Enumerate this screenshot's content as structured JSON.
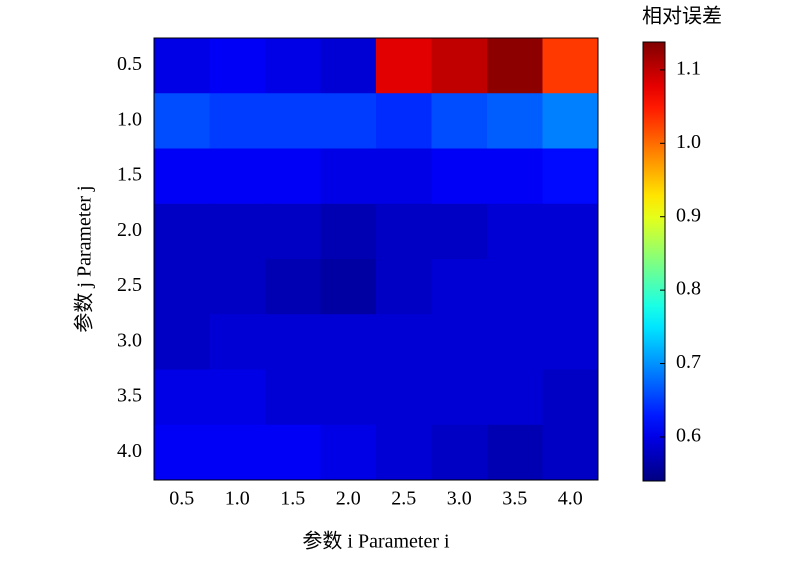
{
  "chart_data": {
    "type": "heatmap",
    "x_label": "参数 i Parameter i",
    "y_label": "参数 j Parameter j",
    "colorbar_label": "相对误差",
    "colormap": "jet",
    "x_categories": [
      "0.5",
      "1.0",
      "1.5",
      "2.0",
      "2.5",
      "3.0",
      "3.5",
      "4.0"
    ],
    "y_categories": [
      "0.5",
      "1.0",
      "1.5",
      "2.0",
      "2.5",
      "3.0",
      "3.5",
      "4.0"
    ],
    "values": [
      [
        0.6,
        0.61,
        0.6,
        0.59,
        1.08,
        1.1,
        1.13,
        1.03
      ],
      [
        0.66,
        0.65,
        0.65,
        0.65,
        0.64,
        0.66,
        0.67,
        0.69
      ],
      [
        0.61,
        0.61,
        0.61,
        0.6,
        0.6,
        0.61,
        0.61,
        0.62
      ],
      [
        0.58,
        0.58,
        0.58,
        0.57,
        0.58,
        0.58,
        0.59,
        0.59
      ],
      [
        0.58,
        0.58,
        0.57,
        0.56,
        0.58,
        0.59,
        0.59,
        0.59
      ],
      [
        0.58,
        0.59,
        0.59,
        0.59,
        0.59,
        0.59,
        0.59,
        0.59
      ],
      [
        0.6,
        0.6,
        0.59,
        0.59,
        0.59,
        0.59,
        0.59,
        0.58
      ],
      [
        0.61,
        0.61,
        0.61,
        0.6,
        0.59,
        0.58,
        0.57,
        0.58
      ]
    ],
    "clim": [
      0.54,
      1.138
    ],
    "cticks": [
      0.6,
      0.7,
      0.8,
      0.9,
      {
        "value": 1.0,
        "label": "1.0"
      },
      1.1
    ]
  }
}
